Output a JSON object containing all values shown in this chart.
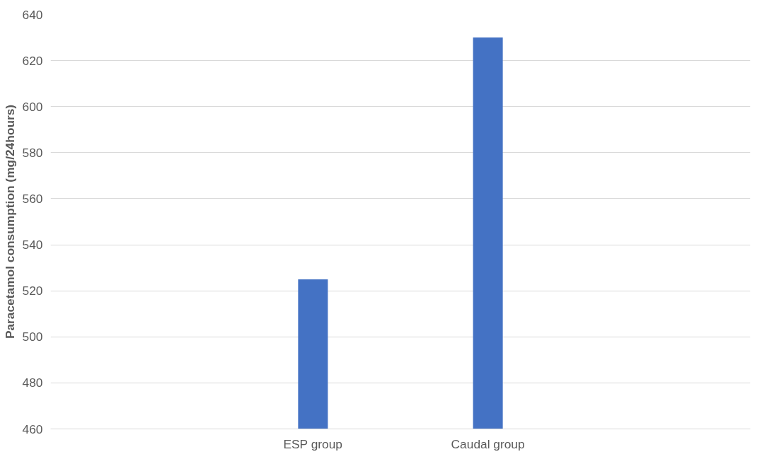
{
  "chart_data": {
    "type": "bar",
    "ylabel": "Paracetamol consumption (mg/24hours)",
    "categories": [
      null,
      "ESP group",
      "Caudal group",
      null
    ],
    "values": [
      null,
      525,
      630,
      null
    ],
    "color": "#4472c4",
    "ylim": [
      460,
      640
    ],
    "yticks": [
      460,
      480,
      500,
      520,
      540,
      560,
      580,
      600,
      620,
      640
    ],
    "grid": "y"
  }
}
